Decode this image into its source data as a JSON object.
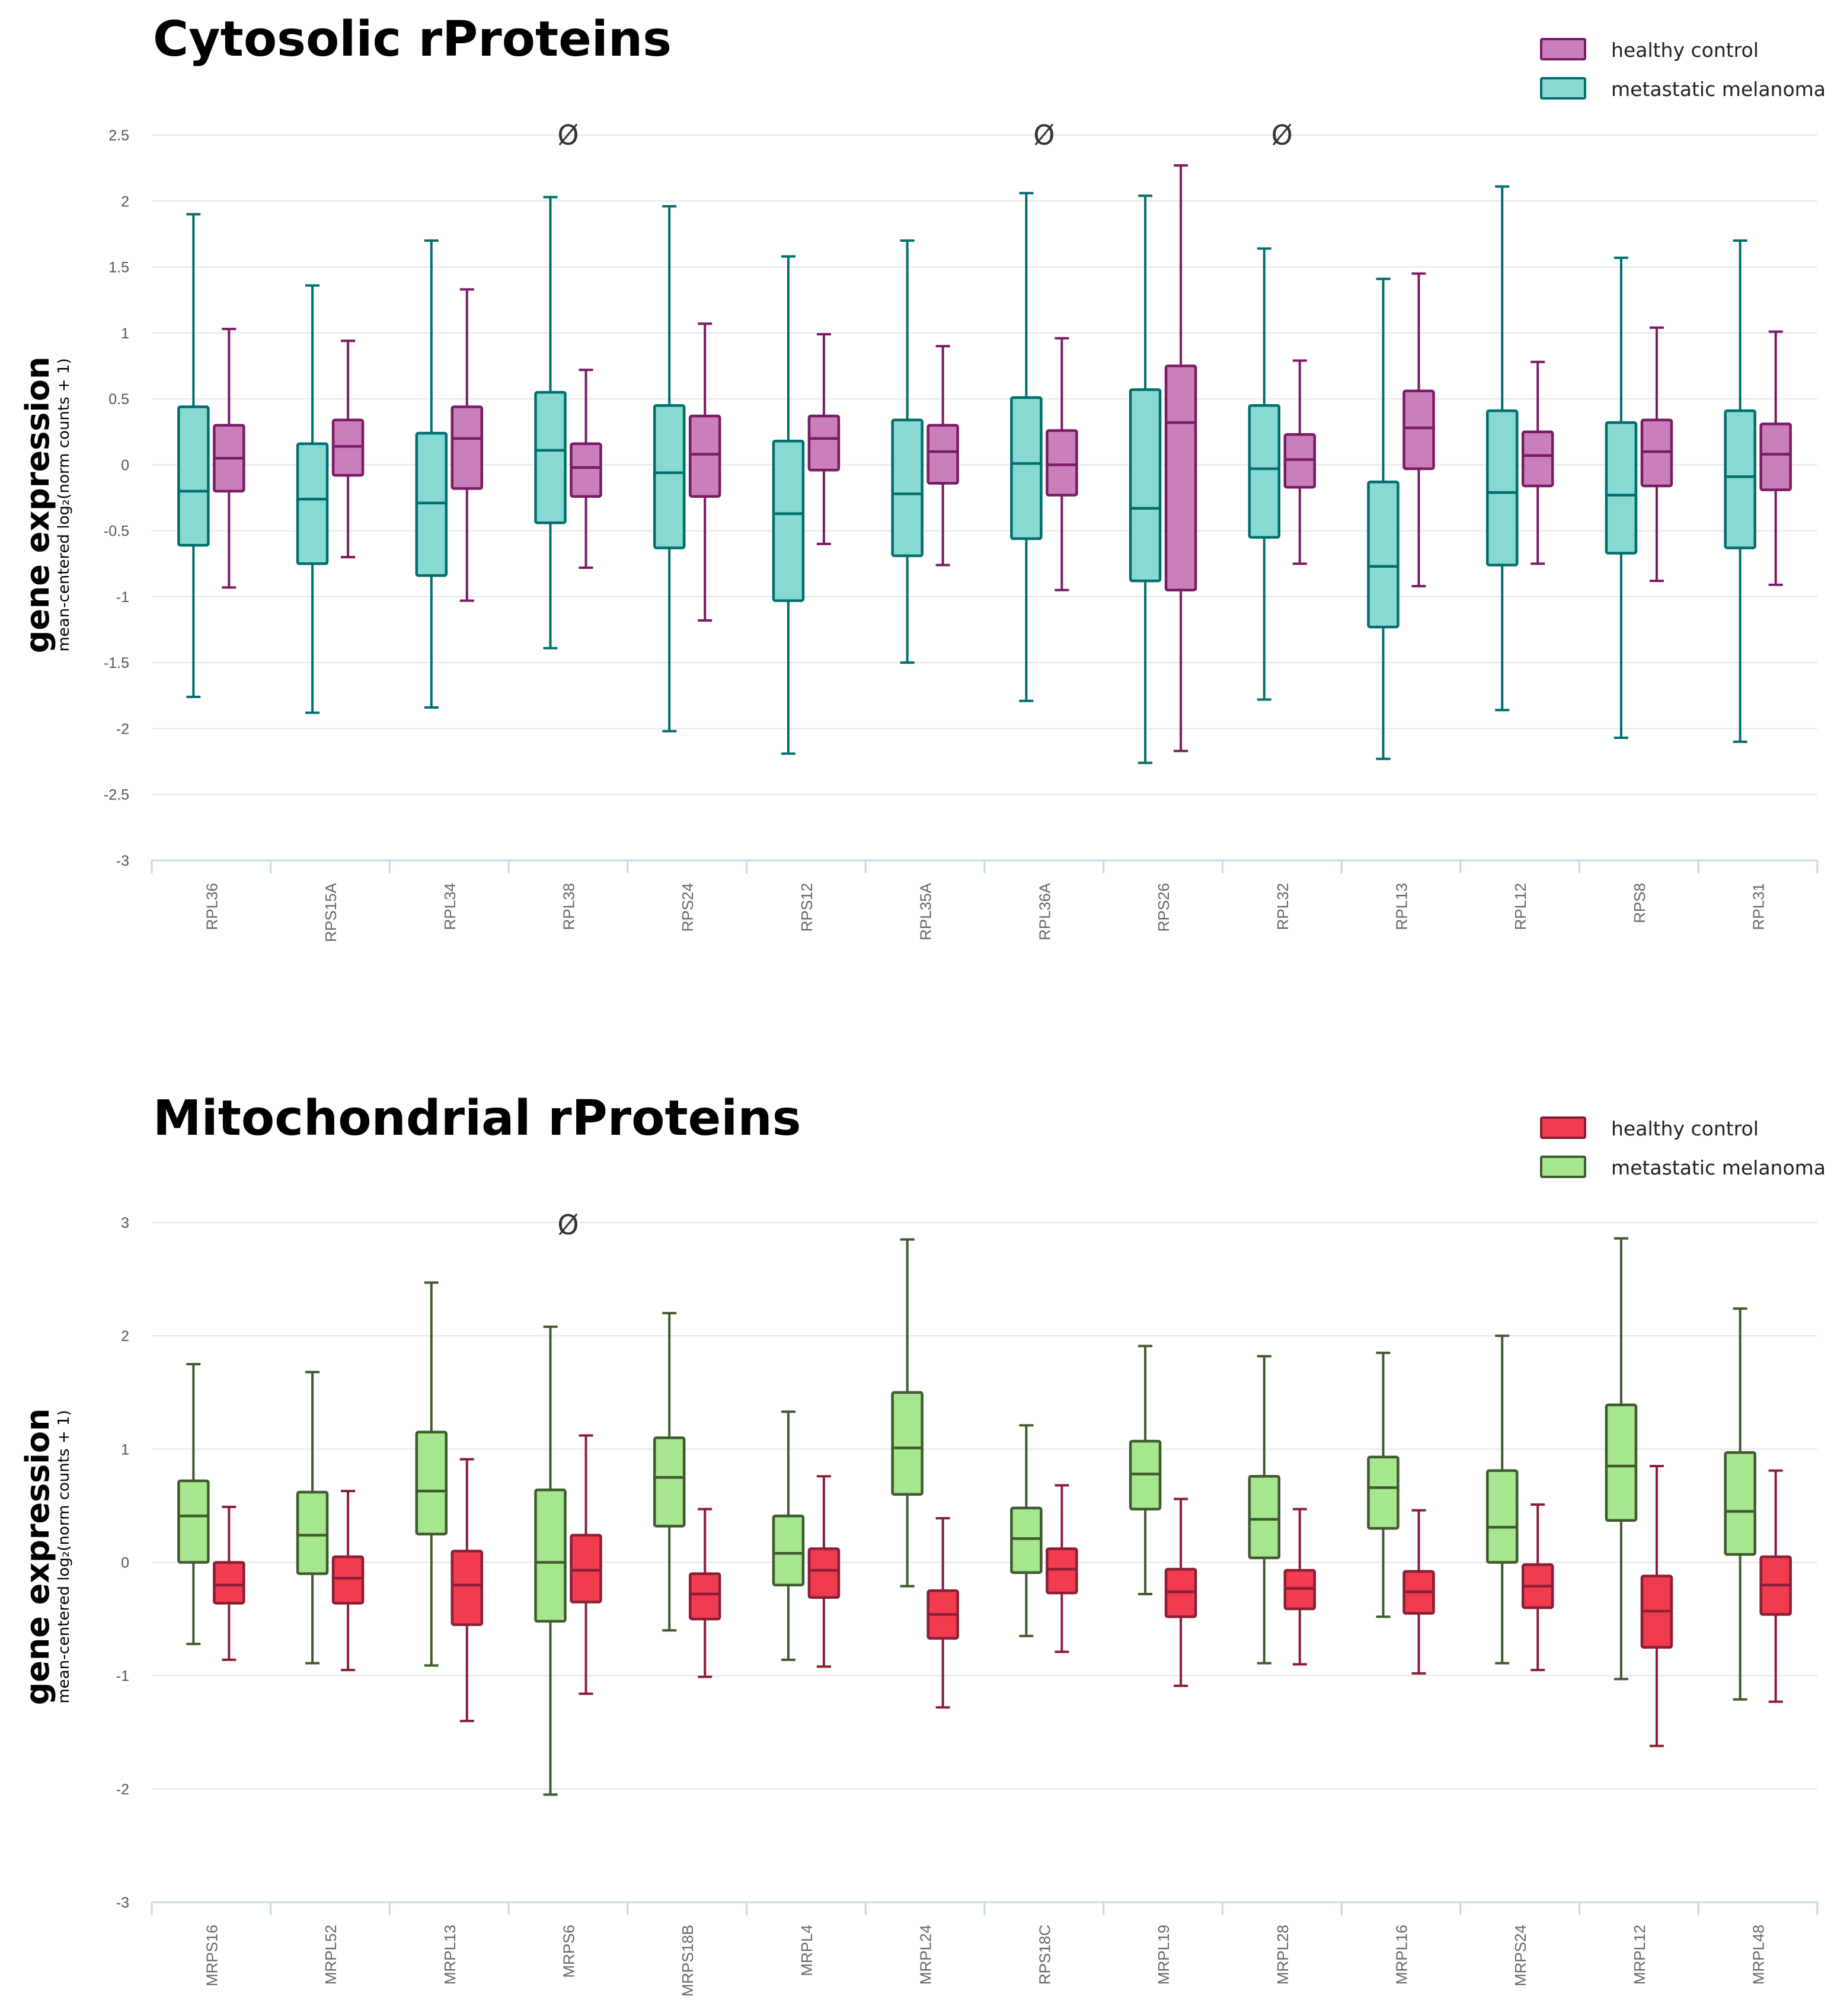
{
  "chart_data": [
    {
      "type": "box",
      "title": "Cytosolic rProteins",
      "ylabel": "gene expression",
      "ylabel_sub": "mean-centered log₂(norm counts + 1)",
      "ylim": [
        -3,
        2.5
      ],
      "yticks": [
        -3,
        -2.5,
        -2,
        -1.5,
        -1,
        -0.5,
        0,
        0.5,
        1,
        1.5,
        2,
        2.5
      ],
      "ytick_labels": [
        "-3",
        "-2.5",
        "-2",
        "-1.5",
        "-1",
        "-0.5",
        "0",
        "0.5",
        "1",
        "1.5",
        "2",
        "2.5"
      ],
      "legend_position": "top-right",
      "categories": [
        "RPL36",
        "RPS15A",
        "RPL34",
        "RPL38",
        "RPS24",
        "RPS12",
        "RPL35A",
        "RPL36A",
        "RPS26",
        "RPL32",
        "RPL13",
        "RPL12",
        "RPS8",
        "RPL31"
      ],
      "annotations": [
        {
          "category": "RPL38",
          "text": "Ø",
          "y": 2.5
        },
        {
          "category": "RPL36A",
          "text": "Ø",
          "y": 2.5
        },
        {
          "category": "RPL32",
          "text": "Ø",
          "y": 2.5
        }
      ],
      "series": [
        {
          "name": "metastatic melanoma",
          "fill": "#88d9d2",
          "stroke": "#006e6e",
          "boxes": [
            {
              "min": -1.76,
              "q1": -0.61,
              "median": -0.2,
              "q3": 0.44,
              "max": 1.9
            },
            {
              "min": -1.88,
              "q1": -0.75,
              "median": -0.26,
              "q3": 0.16,
              "max": 1.36
            },
            {
              "min": -1.84,
              "q1": -0.84,
              "median": -0.29,
              "q3": 0.24,
              "max": 1.7
            },
            {
              "min": -1.39,
              "q1": -0.44,
              "median": 0.11,
              "q3": 0.55,
              "max": 2.03
            },
            {
              "min": -2.02,
              "q1": -0.63,
              "median": -0.06,
              "q3": 0.45,
              "max": 1.96
            },
            {
              "min": -2.19,
              "q1": -1.03,
              "median": -0.37,
              "q3": 0.18,
              "max": 1.58
            },
            {
              "min": -1.5,
              "q1": -0.69,
              "median": -0.22,
              "q3": 0.34,
              "max": 1.7
            },
            {
              "min": -1.79,
              "q1": -0.56,
              "median": 0.01,
              "q3": 0.51,
              "max": 2.06
            },
            {
              "min": -2.26,
              "q1": -0.88,
              "median": -0.33,
              "q3": 0.57,
              "max": 2.04
            },
            {
              "min": -1.78,
              "q1": -0.55,
              "median": -0.03,
              "q3": 0.45,
              "max": 1.64
            },
            {
              "min": -2.23,
              "q1": -1.23,
              "median": -0.77,
              "q3": -0.13,
              "max": 1.41
            },
            {
              "min": -1.86,
              "q1": -0.76,
              "median": -0.21,
              "q3": 0.41,
              "max": 2.11
            },
            {
              "min": -2.07,
              "q1": -0.67,
              "median": -0.23,
              "q3": 0.32,
              "max": 1.57
            },
            {
              "min": -2.1,
              "q1": -0.63,
              "median": -0.09,
              "q3": 0.41,
              "max": 1.7
            }
          ]
        },
        {
          "name": "healthy control",
          "fill": "#c97fba",
          "stroke": "#7a1a66",
          "boxes": [
            {
              "min": -0.93,
              "q1": -0.2,
              "median": 0.05,
              "q3": 0.3,
              "max": 1.03
            },
            {
              "min": -0.7,
              "q1": -0.08,
              "median": 0.14,
              "q3": 0.34,
              "max": 0.94
            },
            {
              "min": -1.03,
              "q1": -0.18,
              "median": 0.2,
              "q3": 0.44,
              "max": 1.33
            },
            {
              "min": -0.78,
              "q1": -0.24,
              "median": -0.02,
              "q3": 0.16,
              "max": 0.72
            },
            {
              "min": -1.18,
              "q1": -0.24,
              "median": 0.08,
              "q3": 0.37,
              "max": 1.07
            },
            {
              "min": -0.6,
              "q1": -0.04,
              "median": 0.2,
              "q3": 0.37,
              "max": 0.99
            },
            {
              "min": -0.76,
              "q1": -0.14,
              "median": 0.1,
              "q3": 0.3,
              "max": 0.9
            },
            {
              "min": -0.95,
              "q1": -0.23,
              "median": 0.0,
              "q3": 0.26,
              "max": 0.96
            },
            {
              "min": -2.17,
              "q1": -0.95,
              "median": 0.32,
              "q3": 0.75,
              "max": 2.27
            },
            {
              "min": -0.75,
              "q1": -0.17,
              "median": 0.04,
              "q3": 0.23,
              "max": 0.79
            },
            {
              "min": -0.92,
              "q1": -0.03,
              "median": 0.28,
              "q3": 0.56,
              "max": 1.45
            },
            {
              "min": -0.75,
              "q1": -0.16,
              "median": 0.07,
              "q3": 0.25,
              "max": 0.78
            },
            {
              "min": -0.88,
              "q1": -0.16,
              "median": 0.1,
              "q3": 0.34,
              "max": 1.04
            },
            {
              "min": -0.91,
              "q1": -0.19,
              "median": 0.08,
              "q3": 0.31,
              "max": 1.01
            }
          ]
        }
      ]
    },
    {
      "type": "box",
      "title": "Mitochondrial rProteins",
      "ylabel": "gene expression",
      "ylabel_sub": "mean-centered log₂(norm counts + 1)",
      "ylim": [
        -3,
        3
      ],
      "yticks": [
        -3,
        -2,
        -1,
        0,
        1,
        2,
        3
      ],
      "ytick_labels": [
        "-3",
        "-2",
        "-1",
        "0",
        "1",
        "2",
        "3"
      ],
      "legend_position": "top-right",
      "categories": [
        "MRPS16",
        "MRPL52",
        "MRPL13",
        "MRPS6",
        "MRPS18B",
        "MRPL4",
        "MRPL24",
        "RPS18C",
        "MRPL19",
        "MRPL28",
        "MRPL16",
        "MRPS24",
        "MRPL12",
        "MRPL48"
      ],
      "annotations": [
        {
          "category": "MRPS6",
          "text": "Ø",
          "y": 2.98
        }
      ],
      "series": [
        {
          "name": "metastatic melanoma",
          "fill": "#a5e68e",
          "stroke": "#3f5a2e",
          "boxes": [
            {
              "min": -0.72,
              "q1": 0.0,
              "median": 0.41,
              "q3": 0.72,
              "max": 1.75
            },
            {
              "min": -0.89,
              "q1": -0.1,
              "median": 0.24,
              "q3": 0.62,
              "max": 1.68
            },
            {
              "min": -0.91,
              "q1": 0.25,
              "median": 0.63,
              "q3": 1.15,
              "max": 2.47
            },
            {
              "min": -2.05,
              "q1": -0.52,
              "median": 0.0,
              "q3": 0.64,
              "max": 2.08
            },
            {
              "min": -0.6,
              "q1": 0.32,
              "median": 0.75,
              "q3": 1.1,
              "max": 2.2
            },
            {
              "min": -0.86,
              "q1": -0.2,
              "median": 0.08,
              "q3": 0.41,
              "max": 1.33
            },
            {
              "min": -0.21,
              "q1": 0.6,
              "median": 1.01,
              "q3": 1.5,
              "max": 2.85
            },
            {
              "min": -0.65,
              "q1": -0.09,
              "median": 0.21,
              "q3": 0.48,
              "max": 1.21
            },
            {
              "min": -0.28,
              "q1": 0.47,
              "median": 0.78,
              "q3": 1.07,
              "max": 1.91
            },
            {
              "min": -0.89,
              "q1": 0.04,
              "median": 0.38,
              "q3": 0.76,
              "max": 1.82
            },
            {
              "min": -0.48,
              "q1": 0.3,
              "median": 0.66,
              "q3": 0.93,
              "max": 1.85
            },
            {
              "min": -0.89,
              "q1": 0.0,
              "median": 0.31,
              "q3": 0.81,
              "max": 2.0
            },
            {
              "min": -1.03,
              "q1": 0.37,
              "median": 0.85,
              "q3": 1.39,
              "max": 2.86
            },
            {
              "min": -1.21,
              "q1": 0.07,
              "median": 0.45,
              "q3": 0.97,
              "max": 2.24
            }
          ]
        },
        {
          "name": "healthy control",
          "fill": "#f03c4e",
          "stroke": "#8a1e36",
          "boxes": [
            {
              "min": -0.86,
              "q1": -0.36,
              "median": -0.2,
              "q3": 0.0,
              "max": 0.49
            },
            {
              "min": -0.95,
              "q1": -0.36,
              "median": -0.14,
              "q3": 0.05,
              "max": 0.63
            },
            {
              "min": -1.4,
              "q1": -0.55,
              "median": -0.2,
              "q3": 0.1,
              "max": 0.91
            },
            {
              "min": -1.16,
              "q1": -0.35,
              "median": -0.07,
              "q3": 0.24,
              "max": 1.12
            },
            {
              "min": -1.01,
              "q1": -0.5,
              "median": -0.28,
              "q3": -0.1,
              "max": 0.47
            },
            {
              "min": -0.92,
              "q1": -0.31,
              "median": -0.07,
              "q3": 0.12,
              "max": 0.76
            },
            {
              "min": -1.28,
              "q1": -0.67,
              "median": -0.46,
              "q3": -0.25,
              "max": 0.39
            },
            {
              "min": -0.79,
              "q1": -0.27,
              "median": -0.06,
              "q3": 0.12,
              "max": 0.68
            },
            {
              "min": -1.09,
              "q1": -0.48,
              "median": -0.26,
              "q3": -0.06,
              "max": 0.56
            },
            {
              "min": -0.9,
              "q1": -0.41,
              "median": -0.23,
              "q3": -0.07,
              "max": 0.47
            },
            {
              "min": -0.98,
              "q1": -0.45,
              "median": -0.26,
              "q3": -0.08,
              "max": 0.46
            },
            {
              "min": -0.95,
              "q1": -0.4,
              "median": -0.21,
              "q3": -0.02,
              "max": 0.51
            },
            {
              "min": -1.62,
              "q1": -0.75,
              "median": -0.43,
              "q3": -0.12,
              "max": 0.85
            },
            {
              "min": -1.23,
              "q1": -0.46,
              "median": -0.2,
              "q3": 0.05,
              "max": 0.81
            }
          ]
        }
      ]
    }
  ]
}
